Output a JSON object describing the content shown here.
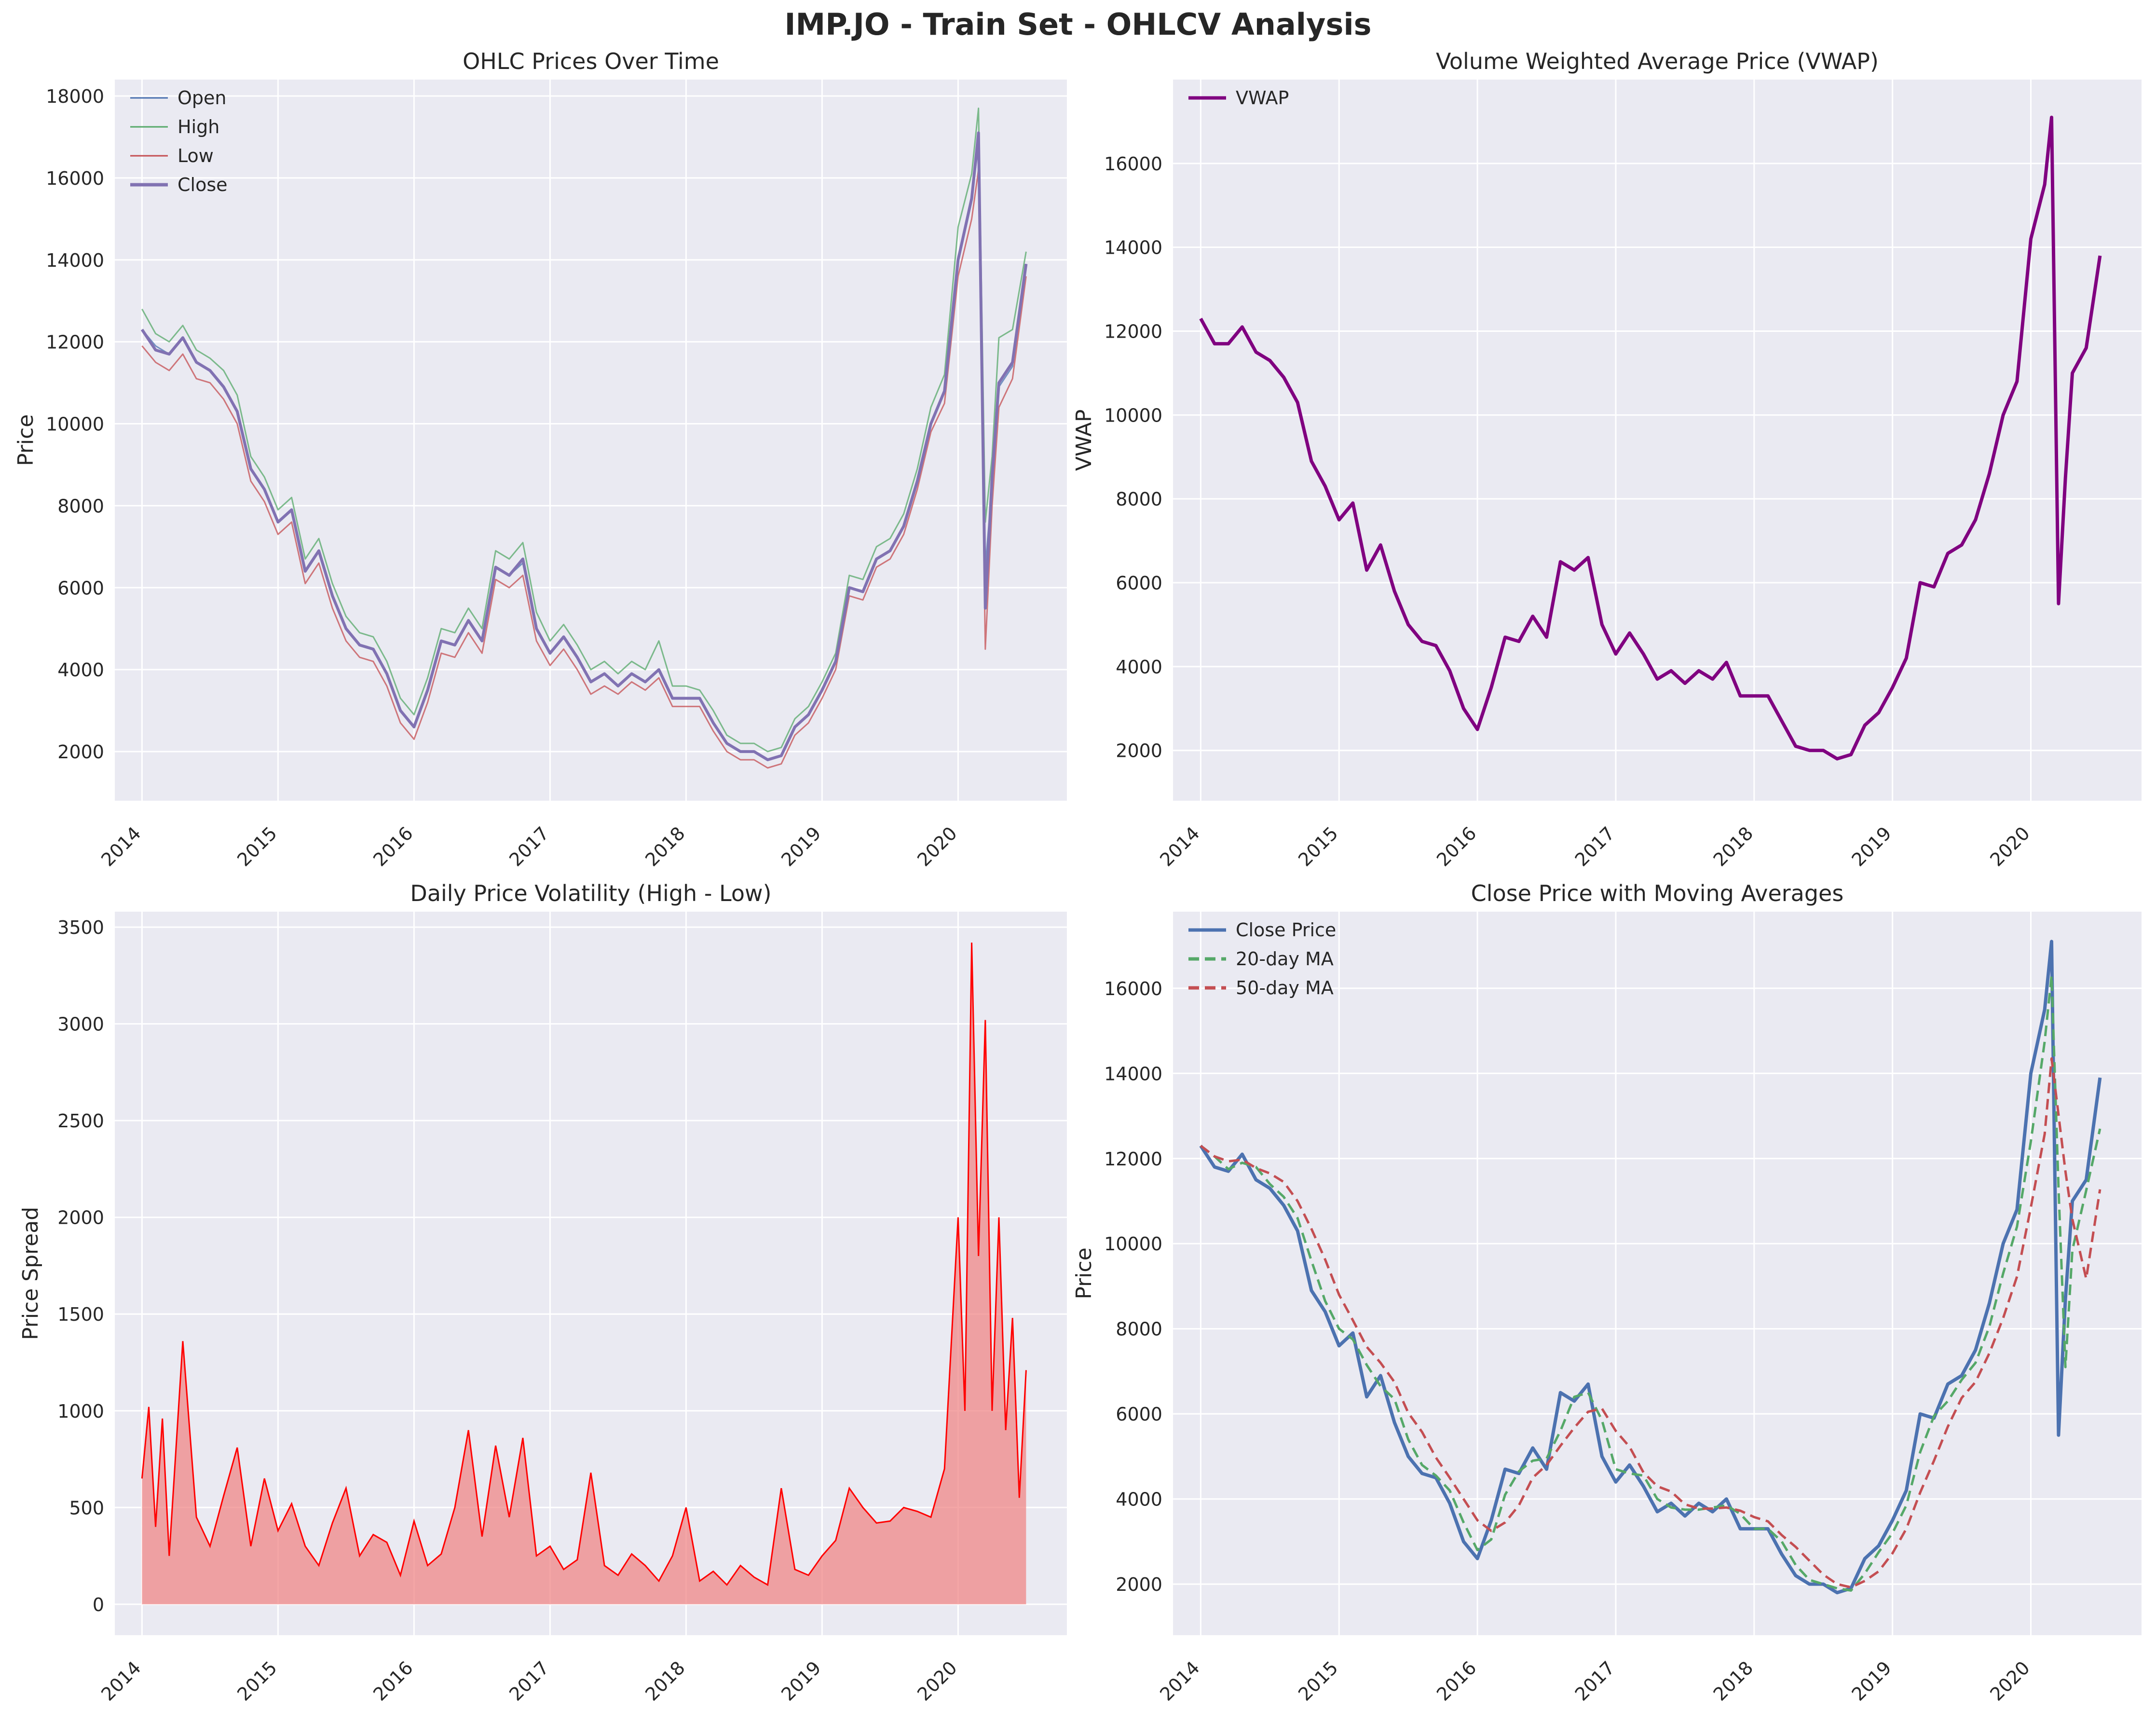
{
  "figure": {
    "title": "IMP.JO - Train Set - OHLCV Analysis",
    "background": "#ffffff",
    "axes_background": "#eaeaf2",
    "grid_color": "#ffffff"
  },
  "colors": {
    "open": "#4c72b0",
    "high": "#55a868",
    "low": "#c44e52",
    "close": "#8172b2",
    "vwap": "#800080",
    "spread": "#ff0000",
    "spread_fill": "#f08080",
    "close_price": "#4c72b0",
    "ma20": "#55a868",
    "ma50": "#c44e52"
  },
  "chart_data": [
    {
      "id": "ohlc",
      "type": "line",
      "title": "OHLC Prices Over Time",
      "xlabel": "",
      "ylabel": "Price",
      "x_ticks": [
        "2014",
        "2015",
        "2016",
        "2017",
        "2018",
        "2019",
        "2020"
      ],
      "y_ticks": [
        "2000",
        "4000",
        "6000",
        "8000",
        "10000",
        "12000",
        "14000",
        "16000",
        "18000"
      ],
      "xlim": [
        2013.8,
        2020.8
      ],
      "ylim": [
        800,
        18400
      ],
      "grid": true,
      "legend": "upper-left",
      "x": [
        2014.0,
        2014.1,
        2014.2,
        2014.3,
        2014.4,
        2014.5,
        2014.6,
        2014.7,
        2014.8,
        2014.9,
        2015.0,
        2015.1,
        2015.2,
        2015.3,
        2015.4,
        2015.5,
        2015.6,
        2015.7,
        2015.8,
        2015.9,
        2016.0,
        2016.1,
        2016.2,
        2016.3,
        2016.4,
        2016.5,
        2016.6,
        2016.7,
        2016.8,
        2016.9,
        2017.0,
        2017.1,
        2017.2,
        2017.3,
        2017.4,
        2017.5,
        2017.6,
        2017.7,
        2017.8,
        2017.9,
        2018.0,
        2018.1,
        2018.2,
        2018.3,
        2018.4,
        2018.5,
        2018.6,
        2018.7,
        2018.8,
        2018.9,
        2019.0,
        2019.1,
        2019.2,
        2019.3,
        2019.4,
        2019.5,
        2019.6,
        2019.7,
        2019.8,
        2019.9,
        2020.0,
        2020.1,
        2020.15,
        2020.2,
        2020.25,
        2020.3,
        2020.4,
        2020.5
      ],
      "series": [
        {
          "name": "Open",
          "color_key": "open",
          "values": [
            12300,
            11900,
            11700,
            12100,
            11500,
            11300,
            10900,
            10300,
            8900,
            8400,
            7600,
            7900,
            6400,
            6900,
            5800,
            5000,
            4600,
            4500,
            3900,
            3000,
            2600,
            3500,
            4700,
            4600,
            5200,
            4700,
            6500,
            6300,
            6600,
            5000,
            4400,
            4800,
            4300,
            3700,
            3900,
            3600,
            3900,
            3700,
            4000,
            3300,
            3300,
            3300,
            2700,
            2200,
            2000,
            2000,
            1800,
            1900,
            2600,
            2900,
            3500,
            4200,
            6000,
            5900,
            6700,
            6900,
            7500,
            8600,
            10000,
            10800,
            14000,
            15500,
            16800,
            6500,
            8500,
            10900,
            11400,
            13900
          ]
        },
        {
          "name": "High",
          "color_key": "high",
          "values": [
            12800,
            12200,
            12000,
            12400,
            11800,
            11600,
            11300,
            10700,
            9200,
            8700,
            7900,
            8200,
            6700,
            7200,
            6100,
            5300,
            4900,
            4800,
            4200,
            3300,
            2900,
            3800,
            5000,
            4900,
            5500,
            5000,
            6900,
            6700,
            7100,
            5400,
            4700,
            5100,
            4600,
            4000,
            4200,
            3900,
            4200,
            4000,
            4700,
            3600,
            3600,
            3500,
            3000,
            2400,
            2200,
            2200,
            2000,
            2100,
            2800,
            3100,
            3700,
            4400,
            6300,
            6200,
            7000,
            7200,
            7800,
            8900,
            10400,
            11200,
            14800,
            16100,
            17700,
            7600,
            9200,
            12100,
            12300,
            14200
          ]
        },
        {
          "name": "Low",
          "color_key": "low",
          "values": [
            11900,
            11500,
            11300,
            11700,
            11100,
            11000,
            10600,
            10000,
            8600,
            8100,
            7300,
            7600,
            6100,
            6600,
            5500,
            4700,
            4300,
            4200,
            3600,
            2700,
            2300,
            3200,
            4400,
            4300,
            4900,
            4400,
            6200,
            6000,
            6300,
            4700,
            4100,
            4500,
            4000,
            3400,
            3600,
            3400,
            3700,
            3500,
            3800,
            3100,
            3100,
            3100,
            2500,
            2000,
            1800,
            1800,
            1600,
            1700,
            2400,
            2700,
            3300,
            4000,
            5800,
            5700,
            6500,
            6700,
            7300,
            8400,
            9800,
            10500,
            13600,
            15000,
            16200,
            4500,
            8000,
            10400,
            11100,
            13600
          ]
        },
        {
          "name": "Close",
          "color_key": "close",
          "values": [
            12300,
            11800,
            11700,
            12100,
            11500,
            11300,
            10900,
            10300,
            8900,
            8400,
            7600,
            7900,
            6400,
            6900,
            5800,
            5000,
            4600,
            4500,
            3900,
            3000,
            2600,
            3500,
            4700,
            4600,
            5200,
            4700,
            6500,
            6300,
            6700,
            5000,
            4400,
            4800,
            4300,
            3700,
            3900,
            3600,
            3900,
            3700,
            4000,
            3300,
            3300,
            3300,
            2700,
            2200,
            2000,
            2000,
            1800,
            1900,
            2600,
            2900,
            3500,
            4200,
            6000,
            5900,
            6700,
            6900,
            7500,
            8600,
            10000,
            10800,
            14000,
            15500,
            17100,
            5500,
            8700,
            11000,
            11500,
            13900
          ]
        }
      ]
    },
    {
      "id": "vwap",
      "type": "line",
      "title": "Volume Weighted Average Price (VWAP)",
      "xlabel": "",
      "ylabel": "VWAP",
      "x_ticks": [
        "2014",
        "2015",
        "2016",
        "2017",
        "2018",
        "2019",
        "2020"
      ],
      "y_ticks": [
        "2000",
        "4000",
        "6000",
        "8000",
        "10000",
        "12000",
        "14000",
        "16000"
      ],
      "xlim": [
        2013.8,
        2020.8
      ],
      "ylim": [
        800,
        18000
      ],
      "grid": true,
      "legend": "upper-left",
      "x": [
        2014.0,
        2014.1,
        2014.2,
        2014.3,
        2014.4,
        2014.5,
        2014.6,
        2014.7,
        2014.8,
        2014.9,
        2015.0,
        2015.1,
        2015.2,
        2015.3,
        2015.4,
        2015.5,
        2015.6,
        2015.7,
        2015.8,
        2015.9,
        2016.0,
        2016.1,
        2016.2,
        2016.3,
        2016.4,
        2016.5,
        2016.6,
        2016.7,
        2016.8,
        2016.9,
        2017.0,
        2017.1,
        2017.2,
        2017.3,
        2017.4,
        2017.5,
        2017.6,
        2017.7,
        2017.8,
        2017.9,
        2018.0,
        2018.1,
        2018.2,
        2018.3,
        2018.4,
        2018.5,
        2018.6,
        2018.7,
        2018.8,
        2018.9,
        2019.0,
        2019.1,
        2019.2,
        2019.3,
        2019.4,
        2019.5,
        2019.6,
        2019.7,
        2019.8,
        2019.9,
        2020.0,
        2020.1,
        2020.15,
        2020.2,
        2020.25,
        2020.3,
        2020.4,
        2020.5
      ],
      "series": [
        {
          "name": "VWAP",
          "color_key": "vwap",
          "values": [
            12300,
            11700,
            11700,
            12100,
            11500,
            11300,
            10900,
            10300,
            8900,
            8300,
            7500,
            7900,
            6300,
            6900,
            5800,
            5000,
            4600,
            4500,
            3900,
            3000,
            2500,
            3500,
            4700,
            4600,
            5200,
            4700,
            6500,
            6300,
            6600,
            5000,
            4300,
            4800,
            4300,
            3700,
            3900,
            3600,
            3900,
            3700,
            4100,
            3300,
            3300,
            3300,
            2700,
            2100,
            2000,
            2000,
            1800,
            1900,
            2600,
            2900,
            3500,
            4200,
            6000,
            5900,
            6700,
            6900,
            7500,
            8600,
            10000,
            10800,
            14200,
            15500,
            17100,
            5500,
            8500,
            11000,
            11600,
            13800
          ]
        }
      ]
    },
    {
      "id": "spread",
      "type": "area",
      "title": "Daily Price Volatility (High - Low)",
      "xlabel": "",
      "ylabel": "Price Spread",
      "x_ticks": [
        "2014",
        "2015",
        "2016",
        "2017",
        "2018",
        "2019",
        "2020"
      ],
      "y_ticks": [
        "0",
        "500",
        "1000",
        "1500",
        "2000",
        "2500",
        "3000",
        "3500"
      ],
      "xlim": [
        2013.8,
        2020.8
      ],
      "ylim": [
        -160,
        3580
      ],
      "grid": true,
      "legend": "none",
      "x": [
        2014.0,
        2014.05,
        2014.1,
        2014.15,
        2014.2,
        2014.3,
        2014.4,
        2014.5,
        2014.6,
        2014.7,
        2014.8,
        2014.9,
        2015.0,
        2015.1,
        2015.2,
        2015.3,
        2015.4,
        2015.5,
        2015.6,
        2015.7,
        2015.8,
        2015.9,
        2016.0,
        2016.1,
        2016.2,
        2016.3,
        2016.4,
        2016.5,
        2016.6,
        2016.7,
        2016.8,
        2016.9,
        2017.0,
        2017.1,
        2017.2,
        2017.3,
        2017.4,
        2017.5,
        2017.6,
        2017.7,
        2017.8,
        2017.9,
        2018.0,
        2018.1,
        2018.2,
        2018.3,
        2018.4,
        2018.5,
        2018.6,
        2018.7,
        2018.8,
        2018.9,
        2019.0,
        2019.1,
        2019.2,
        2019.3,
        2019.4,
        2019.5,
        2019.6,
        2019.7,
        2019.8,
        2019.9,
        2020.0,
        2020.05,
        2020.1,
        2020.15,
        2020.2,
        2020.25,
        2020.3,
        2020.35,
        2020.4,
        2020.45,
        2020.5
      ],
      "series": [
        {
          "name": "",
          "color_key": "spread",
          "values": [
            650,
            1020,
            400,
            960,
            250,
            1360,
            450,
            300,
            560,
            810,
            300,
            650,
            380,
            520,
            300,
            200,
            420,
            600,
            250,
            360,
            320,
            150,
            430,
            200,
            260,
            500,
            900,
            350,
            820,
            450,
            860,
            250,
            300,
            180,
            230,
            680,
            200,
            150,
            260,
            200,
            120,
            250,
            500,
            120,
            170,
            100,
            200,
            140,
            100,
            600,
            180,
            150,
            250,
            330,
            600,
            500,
            420,
            430,
            500,
            480,
            450,
            700,
            2000,
            1000,
            3420,
            1800,
            3020,
            1000,
            2000,
            900,
            1480,
            550,
            1210
          ]
        }
      ]
    },
    {
      "id": "ma",
      "type": "line",
      "title": "Close Price with Moving Averages",
      "xlabel": "",
      "ylabel": "Price",
      "x_ticks": [
        "2014",
        "2015",
        "2016",
        "2017",
        "2018",
        "2019",
        "2020"
      ],
      "y_ticks": [
        "2000",
        "4000",
        "6000",
        "8000",
        "10000",
        "12000",
        "14000",
        "16000"
      ],
      "xlim": [
        2013.8,
        2020.8
      ],
      "ylim": [
        800,
        17800
      ],
      "grid": true,
      "legend": "upper-left",
      "x": [
        2014.0,
        2014.1,
        2014.2,
        2014.3,
        2014.4,
        2014.5,
        2014.6,
        2014.7,
        2014.8,
        2014.9,
        2015.0,
        2015.1,
        2015.2,
        2015.3,
        2015.4,
        2015.5,
        2015.6,
        2015.7,
        2015.8,
        2015.9,
        2016.0,
        2016.1,
        2016.2,
        2016.3,
        2016.4,
        2016.5,
        2016.6,
        2016.7,
        2016.8,
        2016.9,
        2017.0,
        2017.1,
        2017.2,
        2017.3,
        2017.4,
        2017.5,
        2017.6,
        2017.7,
        2017.8,
        2017.9,
        2018.0,
        2018.1,
        2018.2,
        2018.3,
        2018.4,
        2018.5,
        2018.6,
        2018.7,
        2018.8,
        2018.9,
        2019.0,
        2019.1,
        2019.2,
        2019.3,
        2019.4,
        2019.5,
        2019.6,
        2019.7,
        2019.8,
        2019.9,
        2020.0,
        2020.1,
        2020.15,
        2020.2,
        2020.25,
        2020.3,
        2020.4,
        2020.5
      ],
      "series": [
        {
          "name": "Close Price",
          "color_key": "close_price",
          "values": [
            12300,
            11800,
            11700,
            12100,
            11500,
            11300,
            10900,
            10300,
            8900,
            8400,
            7600,
            7900,
            6400,
            6900,
            5800,
            5000,
            4600,
            4500,
            3900,
            3000,
            2600,
            3500,
            4700,
            4600,
            5200,
            4700,
            6500,
            6300,
            6700,
            5000,
            4400,
            4800,
            4300,
            3700,
            3900,
            3600,
            3900,
            3700,
            4000,
            3300,
            3300,
            3300,
            2700,
            2200,
            2000,
            2000,
            1800,
            1900,
            2600,
            2900,
            3500,
            4200,
            6000,
            5900,
            6700,
            6900,
            7500,
            8600,
            10000,
            10800,
            14000,
            15500,
            17100,
            5500,
            8700,
            11000,
            11500,
            13900
          ]
        },
        {
          "name": "20-day MA",
          "color_key": "ma20",
          "values": null,
          "window": 2
        },
        {
          "name": "50-day MA",
          "color_key": "ma50",
          "values": null,
          "window": 4
        }
      ]
    }
  ]
}
